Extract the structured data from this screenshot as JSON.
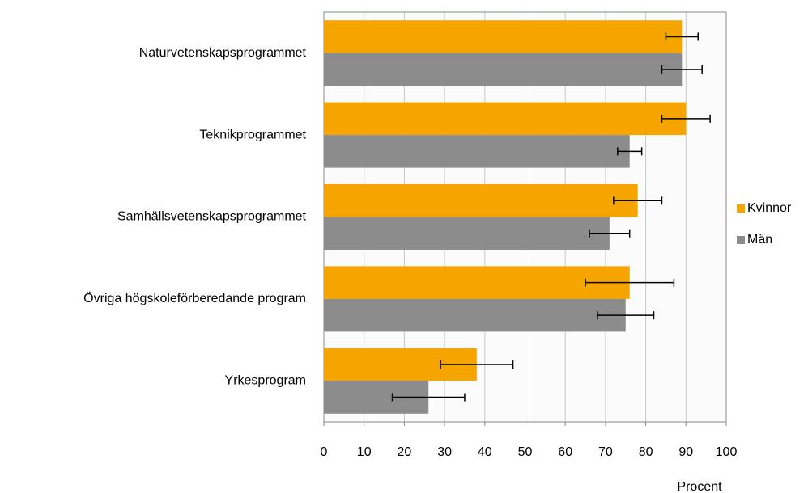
{
  "chart_data": {
    "type": "hbar",
    "categories": [
      "Naturvetenskapsprogrammet",
      "Teknikprogrammet",
      "Samhällsvetenskapsprogrammet",
      "Övriga högskoleförberedande program",
      "Yrkesprogram"
    ],
    "series": [
      {
        "name": "Kvinnor",
        "color": "#f5a400",
        "values": [
          89,
          90,
          78,
          76,
          38
        ],
        "errors": [
          4,
          6,
          6,
          11,
          9
        ]
      },
      {
        "name": "Män",
        "color": "#8c8c8c",
        "values": [
          89,
          76,
          71,
          75,
          26
        ],
        "errors": [
          5,
          3,
          5,
          7,
          9
        ]
      }
    ],
    "x_label": "Procent",
    "xlim": [
      0,
      100
    ],
    "xticks": [
      0,
      10,
      20,
      30,
      40,
      50,
      60,
      70,
      80,
      90,
      100
    ],
    "grid": true,
    "legend": "right"
  }
}
